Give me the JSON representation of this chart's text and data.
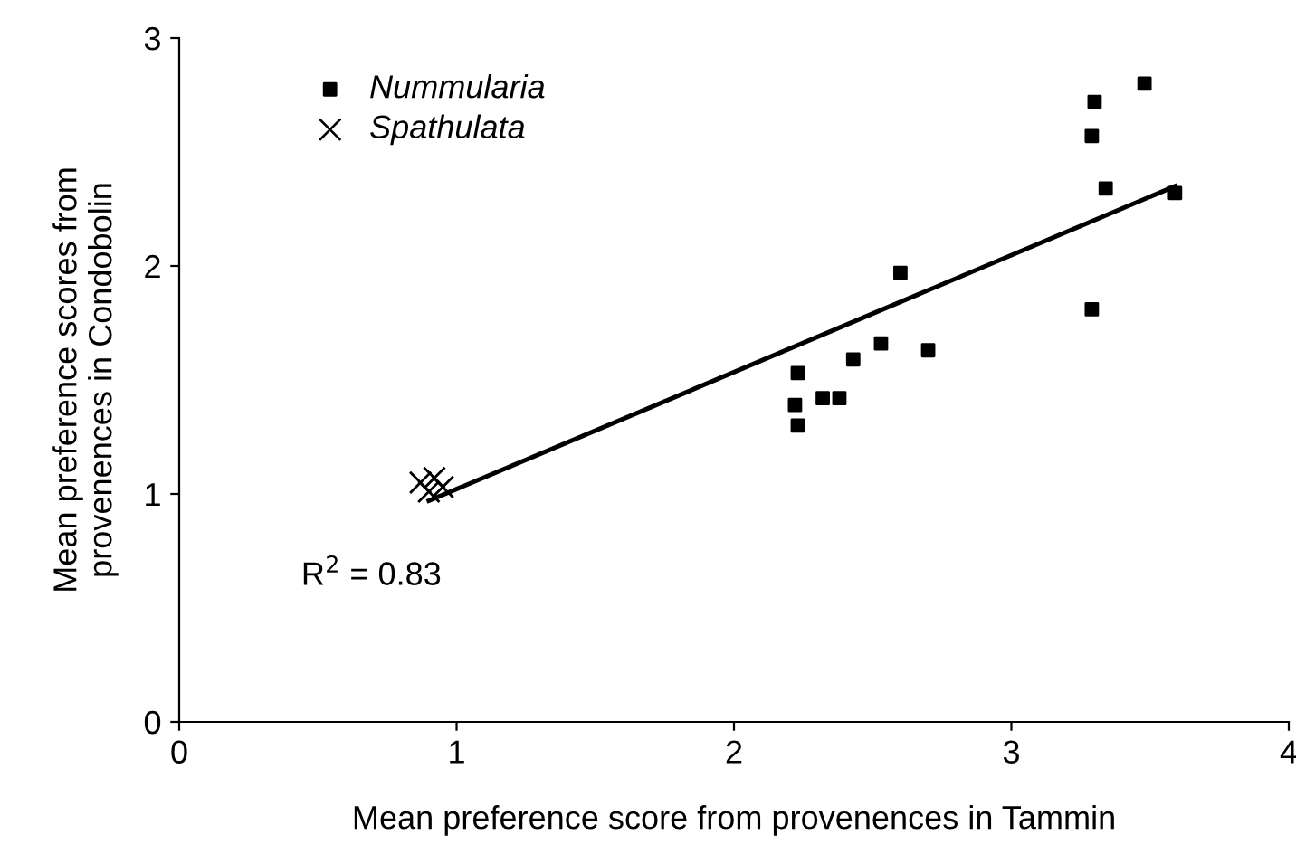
{
  "chart_data": {
    "type": "scatter",
    "xlabel": "Mean preference score from provenences in Tammin",
    "ylabel": "Mean preference scores from\nprovenences in Condobolin",
    "xlim": [
      0,
      4
    ],
    "xticks": [
      0,
      1,
      2,
      3,
      4
    ],
    "ylim": [
      0,
      3
    ],
    "yticks": [
      0,
      1,
      2,
      3
    ],
    "grid": false,
    "legend": "top left",
    "series": [
      {
        "name": "Nummularia",
        "color": "#000000",
        "marker": "square",
        "x": [
          2.23,
          2.22,
          2.23,
          2.32,
          2.38,
          2.43,
          2.53,
          2.6,
          2.7,
          3.29,
          3.34,
          3.59,
          3.48,
          3.3,
          3.29
        ],
        "values": [
          1.53,
          1.39,
          1.3,
          1.42,
          1.42,
          1.59,
          1.66,
          1.97,
          1.63,
          1.81,
          2.34,
          2.32,
          2.8,
          2.72,
          2.57
        ]
      },
      {
        "name": "Spathulata",
        "color": "#000000",
        "marker": "cross",
        "x": [
          0.87,
          0.92,
          0.95,
          0.9
        ],
        "values": [
          1.05,
          1.07,
          1.03,
          1.01
        ]
      },
      {
        "type": "line",
        "color": "#000000",
        "x": [
          0.9,
          3.59
        ],
        "values": [
          0.97,
          2.35
        ]
      }
    ],
    "annotations": [
      "R$^{2}$ = 0.83"
    ]
  }
}
